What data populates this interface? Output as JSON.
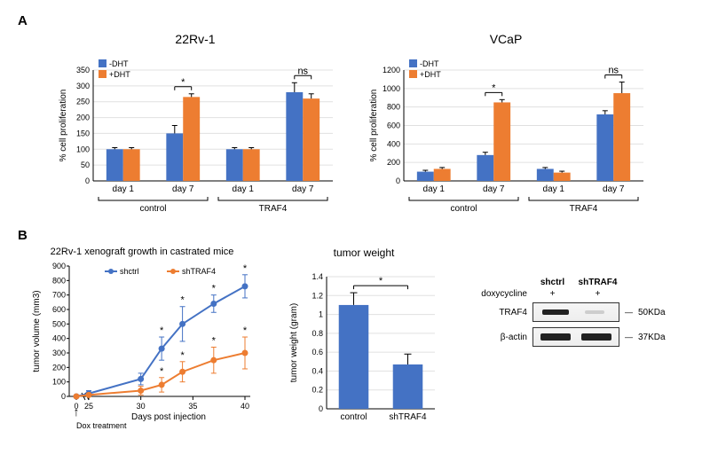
{
  "panelA": {
    "label": "A",
    "charts": [
      {
        "title": "22Rv-1",
        "type": "bar",
        "ylabel": "% cell proliferation",
        "ylim": [
          0,
          350
        ],
        "ytick_step": 50,
        "categories": [
          "day 1",
          "day 7",
          "day 1",
          "day 7"
        ],
        "group_labels": [
          "control",
          "TRAF4"
        ],
        "series": [
          {
            "name": "-DHT",
            "color": "#4472c4",
            "values": [
              100,
              150,
              100,
              280
            ],
            "errors": [
              5,
              25,
              5,
              30
            ]
          },
          {
            "name": "+DHT",
            "color": "#ed7d31",
            "values": [
              100,
              265,
              100,
              260
            ],
            "errors": [
              5,
              10,
              5,
              15
            ]
          }
        ],
        "sig_markers": [
          {
            "between": [
              1
            ],
            "label": "*"
          },
          {
            "between": [
              3
            ],
            "label": "ns"
          }
        ]
      },
      {
        "title": "VCaP",
        "type": "bar",
        "ylabel": "% cell proliferation",
        "ylim": [
          0,
          1200
        ],
        "ytick_step": 200,
        "categories": [
          "day 1",
          "day 7",
          "day 1",
          "day 7"
        ],
        "group_labels": [
          "control",
          "TRAF4"
        ],
        "series": [
          {
            "name": "-DHT",
            "color": "#4472c4",
            "values": [
              100,
              280,
              130,
              720
            ],
            "errors": [
              15,
              30,
              15,
              40
            ]
          },
          {
            "name": "+DHT",
            "color": "#ed7d31",
            "values": [
              130,
              850,
              90,
              950
            ],
            "errors": [
              15,
              30,
              15,
              120
            ]
          }
        ],
        "sig_markers": [
          {
            "between": [
              1
            ],
            "label": "*"
          },
          {
            "between": [
              3
            ],
            "label": "ns"
          }
        ]
      }
    ]
  },
  "panelB": {
    "label": "B",
    "lineChart": {
      "title": "22Rv-1 xenograft growth in castrated mice",
      "type": "line",
      "ylabel": "tumor volume (mm3)",
      "xlabel": "Days post injection",
      "ylim": [
        0,
        900
      ],
      "ytick_step": 100,
      "xlim": [
        0,
        40
      ],
      "x_ticks": [
        0,
        25,
        30,
        35,
        40
      ],
      "x_break_after": 0,
      "series": [
        {
          "name": "shctrl",
          "color": "#4472c4",
          "points": [
            [
              0,
              0
            ],
            [
              25,
              20
            ],
            [
              30,
              120
            ],
            [
              32,
              330
            ],
            [
              34,
              500
            ],
            [
              37,
              640
            ],
            [
              40,
              760
            ]
          ],
          "errors": [
            0,
            20,
            40,
            80,
            120,
            60,
            80
          ]
        },
        {
          "name": "shTRAF4",
          "color": "#ed7d31",
          "points": [
            [
              0,
              0
            ],
            [
              25,
              10
            ],
            [
              30,
              40
            ],
            [
              32,
              80
            ],
            [
              34,
              170
            ],
            [
              37,
              250
            ],
            [
              40,
              300
            ]
          ],
          "errors": [
            0,
            10,
            30,
            50,
            70,
            90,
            110
          ]
        }
      ],
      "sig_markers_x": [
        32,
        34,
        37,
        40
      ],
      "dox_label": "Dox treatment"
    },
    "barChart": {
      "title": "tumor weight",
      "type": "bar",
      "ylabel": "tumor weight (gram)",
      "ylim": [
        0,
        1.4
      ],
      "ytick_step": 0.2,
      "categories": [
        "control",
        "shTRAF4"
      ],
      "color": "#4472c4",
      "values": [
        1.1,
        0.47
      ],
      "errors": [
        0.13,
        0.11
      ],
      "sig_label": "*"
    },
    "western": {
      "header_lanes": [
        "shctrl",
        "shTRAF4"
      ],
      "doxy_label": "doxycycline",
      "doxy_values": [
        "+",
        "+"
      ],
      "rows": [
        {
          "label": "TRAF4",
          "mw": "50KDa",
          "lane_intensity": [
            "dark",
            "faint"
          ]
        },
        {
          "label": "β-actin",
          "mw": "37KDa",
          "lane_intensity": [
            "dark",
            "dark"
          ]
        }
      ]
    }
  }
}
